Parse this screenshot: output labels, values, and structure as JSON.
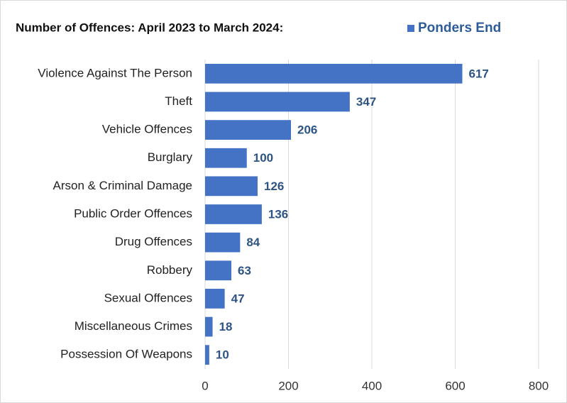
{
  "chart_data": {
    "type": "bar",
    "orientation": "horizontal",
    "title": "Number of Offences: April 2023 to March 2024:",
    "categories": [
      "Violence Against The Person",
      "Theft",
      "Vehicle Offences",
      "Burglary",
      "Arson & Criminal Damage",
      "Public Order Offences",
      "Drug Offences",
      "Robbery",
      "Sexual Offences",
      "Miscellaneous Crimes",
      "Possession Of Weapons"
    ],
    "series": [
      {
        "name": "Ponders End",
        "color": "#4472c4",
        "values": [
          617,
          347,
          206,
          100,
          126,
          136,
          84,
          63,
          47,
          18,
          10
        ]
      }
    ],
    "xlim": [
      0,
      800
    ],
    "xticks": [
      0,
      200,
      400,
      600,
      800
    ],
    "grid": true,
    "legend": "top-right"
  }
}
